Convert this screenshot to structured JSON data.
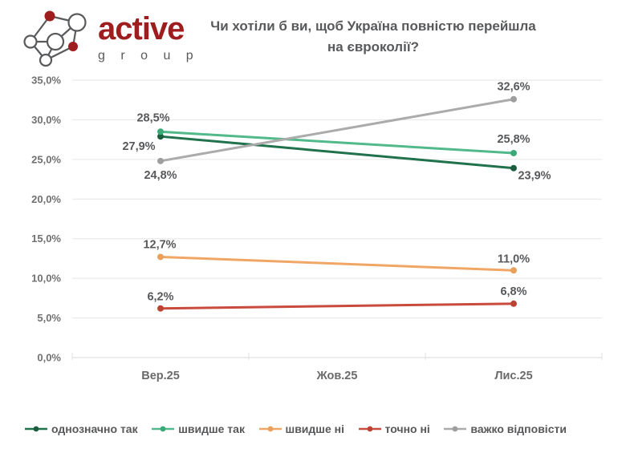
{
  "logo": {
    "brand": "active",
    "sub": "g r o u p",
    "accent_color": "#9e1d1e",
    "gray_color": "#595a5c"
  },
  "chart_data": {
    "type": "line",
    "title": "Чи хотіли б ви, щоб Україна повністю перейшла на євроколії?",
    "categories": [
      "Вер.25",
      "Жов.25",
      "Лис.25"
    ],
    "x_indices": [
      0,
      2
    ],
    "ylim": [
      0,
      35
    ],
    "ytick_step": 5,
    "ytick_labels_top_down": [
      "35,0%",
      "30,0%",
      "25,0%",
      "20,0%",
      "15,0%",
      "10,0%",
      "5,0%",
      "0,0%"
    ],
    "grid": true,
    "legend_position": "bottom",
    "series": [
      {
        "name": "однозначно так",
        "values": [
          27.9,
          23.9
        ],
        "labels": [
          "27,9%",
          "23,9%"
        ],
        "color": "#20714c",
        "marker_color": "#1b5e3f",
        "label_offsets": [
          [
            -27,
            12
          ],
          [
            26,
            9
          ]
        ]
      },
      {
        "name": "швидше так",
        "values": [
          28.5,
          25.8
        ],
        "labels": [
          "28,5%",
          "25,8%"
        ],
        "color": "#52b98b",
        "marker_color": "#3aa877",
        "label_offsets": [
          [
            -9,
            -18
          ],
          [
            0,
            -18
          ]
        ]
      },
      {
        "name": "швидше ні",
        "values": [
          12.7,
          11.0
        ],
        "labels": [
          "12,7%",
          "11,0%"
        ],
        "color": "#f0a766",
        "marker_color": "#e8a05a",
        "label_offsets": [
          [
            -1,
            -16
          ],
          [
            0,
            -15
          ]
        ]
      },
      {
        "name": "точно ні",
        "values": [
          6.2,
          6.8
        ],
        "labels": [
          "6,2%",
          "6,8%"
        ],
        "color": "#c94b3d",
        "marker_color": "#bc4234",
        "label_offsets": [
          [
            0,
            -15
          ],
          [
            0,
            -16
          ]
        ]
      },
      {
        "name": "важко відповісти",
        "values": [
          24.8,
          32.6
        ],
        "labels": [
          "24,8%",
          "32,6%"
        ],
        "color": "#ababab",
        "marker_color": "#9e9e9e",
        "label_offsets": [
          [
            0,
            17
          ],
          [
            0,
            -16
          ]
        ]
      }
    ]
  }
}
